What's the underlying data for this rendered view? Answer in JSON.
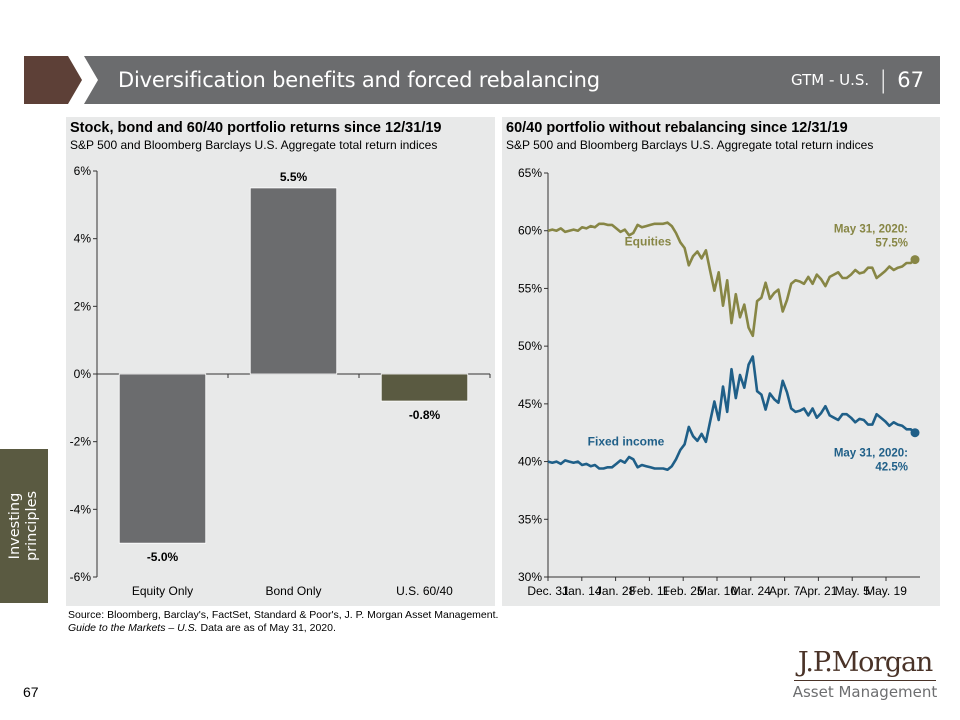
{
  "header": {
    "title": "Diversification benefits and forced rebalancing",
    "series_label": "GTM - U.S.",
    "separator": "|",
    "page": "67",
    "brown_color": "#5d4037",
    "bar_color": "#6b6c6e"
  },
  "side_tab": {
    "line1": "Investing",
    "line2": "principles"
  },
  "footer": {
    "source": "Source: Bloomberg, Barclay's, FactSet, Standard & Poor's, J. P. Morgan Asset Management.",
    "guide_italic": "Guide to the Markets – U.S.",
    "guide_rest": " Data are as of May 31, 2020.",
    "page_number": "67"
  },
  "logo": {
    "top": "J.P.Morgan",
    "bottom": "Asset Management"
  },
  "chart_data": [
    {
      "type": "bar",
      "title": "Stock, bond and 60/40 portfolio returns since 12/31/19",
      "subtitle": "S&P 500 and Bloomberg Barclays U.S. Aggregate total return indices",
      "categories": [
        "Equity Only",
        "Bond Only",
        "U.S. 60/40"
      ],
      "values": [
        -5.0,
        5.5,
        -0.8
      ],
      "data_labels": [
        "-5.0%",
        "5.5%",
        "-0.8%"
      ],
      "colors": [
        "#6b6c6e",
        "#6b6c6e",
        "#5a5a41"
      ],
      "ylim": [
        -6,
        6
      ],
      "yticks": [
        6,
        4,
        2,
        0,
        -2,
        -4,
        -6
      ],
      "ytick_labels": [
        "6%",
        "4%",
        "2%",
        "0%",
        "-2%",
        "-4%",
        "-6%"
      ],
      "xlabel": "",
      "ylabel": "",
      "grid": false,
      "legend": "none"
    },
    {
      "type": "line",
      "title": "60/40 portfolio without rebalancing since 12/31/19",
      "subtitle": "S&P 500 and Bloomberg Barclays U.S. Aggregate total return indices",
      "ylim": [
        30,
        65
      ],
      "yticks": [
        65,
        60,
        55,
        50,
        45,
        40,
        35,
        30
      ],
      "ytick_labels": [
        "65%",
        "60%",
        "55%",
        "50%",
        "45%",
        "40%",
        "35%",
        "30%"
      ],
      "xtick_labels": [
        "Dec. 31",
        "Jan. 14",
        "Jan. 28",
        "Feb. 11",
        "Feb. 25",
        "Mar. 10",
        "Mar. 24",
        "Apr. 7",
        "Apr. 21",
        "May. 5",
        "May. 19"
      ],
      "x_start": "Dec. 31, 2019",
      "x_end": "May 31, 2020",
      "grid": false,
      "legend": "inline labels",
      "series": [
        {
          "name": "Equities",
          "color": "#878645",
          "values": [
            60.0,
            60.1,
            60.0,
            60.2,
            59.9,
            60.0,
            60.1,
            60.0,
            60.3,
            60.2,
            60.4,
            60.3,
            60.6,
            60.6,
            60.5,
            60.5,
            60.2,
            59.9,
            60.1,
            59.6,
            59.8,
            60.5,
            60.3,
            60.4,
            60.5,
            60.6,
            60.6,
            60.6,
            60.7,
            60.4,
            59.8,
            59.0,
            58.5,
            57.0,
            57.8,
            58.2,
            57.6,
            58.3,
            56.5,
            54.8,
            56.4,
            53.5,
            55.7,
            52.0,
            54.5,
            52.5,
            53.6,
            51.6,
            50.9,
            53.9,
            54.2,
            55.5,
            54.1,
            54.6,
            54.9,
            53.0,
            54.0,
            55.4,
            55.7,
            55.6,
            55.4,
            56.0,
            55.4,
            56.2,
            55.8,
            55.2,
            56.0,
            56.2,
            56.4,
            55.9,
            55.9,
            56.2,
            56.6,
            56.3,
            56.4,
            56.8,
            56.8,
            55.9,
            56.2,
            56.5,
            56.9,
            56.6,
            56.8,
            56.9,
            57.2,
            57.2,
            57.5
          ],
          "end_label": "May 31, 2020:",
          "end_value_label": "57.5%",
          "end_value": 57.5
        },
        {
          "name": "Fixed income",
          "color": "#1f5f88",
          "values": [
            40.0,
            39.9,
            40.0,
            39.8,
            40.1,
            40.0,
            39.9,
            40.0,
            39.7,
            39.8,
            39.6,
            39.7,
            39.4,
            39.4,
            39.5,
            39.5,
            39.8,
            40.1,
            39.9,
            40.4,
            40.2,
            39.5,
            39.7,
            39.6,
            39.5,
            39.4,
            39.4,
            39.4,
            39.3,
            39.6,
            40.2,
            41.0,
            41.5,
            43.0,
            42.2,
            41.8,
            42.4,
            41.7,
            43.5,
            45.2,
            43.6,
            46.5,
            44.3,
            48.0,
            45.5,
            47.5,
            46.4,
            48.4,
            49.1,
            46.1,
            45.8,
            44.5,
            45.9,
            45.4,
            45.1,
            47.0,
            46.0,
            44.6,
            44.3,
            44.4,
            44.6,
            44.0,
            44.6,
            43.8,
            44.2,
            44.8,
            44.0,
            43.8,
            43.6,
            44.1,
            44.1,
            43.8,
            43.4,
            43.7,
            43.6,
            43.2,
            43.2,
            44.1,
            43.8,
            43.5,
            43.1,
            43.4,
            43.2,
            43.1,
            42.8,
            42.8,
            42.5
          ],
          "end_label": "May 31, 2020:",
          "end_value_label": "42.5%",
          "end_value": 42.5
        }
      ]
    }
  ]
}
